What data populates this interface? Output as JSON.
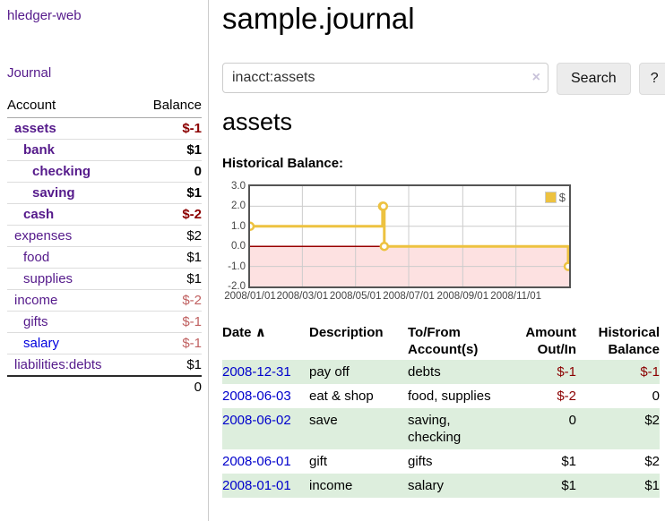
{
  "app": {
    "brand": "hledger-web",
    "nav_journal": "Journal"
  },
  "colors": {
    "link_purple": "#551a8b",
    "link_blue": "#0000cc",
    "negative_strong": "#8b0000",
    "negative_soft": "#c06060",
    "row_green": "#ddeedd",
    "series_yellow": "#edc240",
    "zero_line": "#990000",
    "negative_region": "#fde1e1",
    "grid": "#cccccc"
  },
  "sidebar": {
    "header": {
      "account": "Account",
      "balance": "Balance"
    },
    "accounts": [
      {
        "name": "assets",
        "balance": "$-1",
        "level": 0,
        "bold": true
      },
      {
        "name": "bank",
        "balance": "$1",
        "level": 1,
        "bold": true
      },
      {
        "name": "checking",
        "balance": "0",
        "level": 2,
        "bold": true
      },
      {
        "name": "saving",
        "balance": "$1",
        "level": 2,
        "bold": true
      },
      {
        "name": "cash",
        "balance": "$-2",
        "level": 1,
        "bold": true
      },
      {
        "name": "expenses",
        "balance": "$2",
        "level": 0,
        "bold": false
      },
      {
        "name": "food",
        "balance": "$1",
        "level": 1,
        "bold": false
      },
      {
        "name": "supplies",
        "balance": "$1",
        "level": 1,
        "bold": false
      },
      {
        "name": "income",
        "balance": "$-2",
        "level": 0,
        "bold": false
      },
      {
        "name": "gifts",
        "balance": "$-1",
        "level": 1,
        "bold": false
      },
      {
        "name": "salary",
        "balance": "$-1",
        "level": 1,
        "bold": false,
        "link_color": "blue"
      },
      {
        "name": "liabilities:debts",
        "balance": "$1",
        "level": 0,
        "bold": false
      }
    ],
    "total": "0"
  },
  "main": {
    "title": "sample.journal",
    "search": {
      "value": "inacct:assets",
      "clear": "×",
      "button": "Search",
      "help": "?"
    },
    "account_heading": "assets",
    "chart_label": "Historical Balance:"
  },
  "chart_data": {
    "type": "line",
    "title": "Historical Balance",
    "step": true,
    "legend": "$",
    "legend_position": "top-right",
    "grid": true,
    "ylim": [
      -2,
      3
    ],
    "y_ticks": [
      "3.0",
      "2.0",
      "1.0",
      "0.0",
      "-1.0",
      "-2.0"
    ],
    "x_range": [
      "2008-01-01",
      "2009-01-01"
    ],
    "x_ticks": [
      "2008/01/01",
      "2008/03/01",
      "2008/05/01",
      "2008/07/01",
      "2008/09/01",
      "2008/11/01"
    ],
    "series": [
      {
        "name": "$",
        "color": "#edc240",
        "points": [
          [
            "2008-01-01",
            1
          ],
          [
            "2008-06-01",
            2
          ],
          [
            "2008-06-02",
            2
          ],
          [
            "2008-06-03",
            0
          ],
          [
            "2008-12-31",
            -1
          ]
        ]
      }
    ]
  },
  "transactions": {
    "sort_icon": "∧",
    "headers": [
      {
        "line1": "Date",
        "line2": ""
      },
      {
        "line1": "Description",
        "line2": ""
      },
      {
        "line1": "To/From",
        "line2": "Account(s)"
      },
      {
        "line1": "Amount",
        "line2": "Out/In"
      },
      {
        "line1": "Historical",
        "line2": "Balance"
      }
    ],
    "rows": [
      {
        "date": "2008-12-31",
        "description": "pay off",
        "accounts": "debts",
        "amount": "$-1",
        "balance": "$-1"
      },
      {
        "date": "2008-06-03",
        "description": "eat & shop",
        "accounts": "food, supplies",
        "amount": "$-2",
        "balance": "0"
      },
      {
        "date": "2008-06-02",
        "description": "save",
        "accounts": "saving, checking",
        "amount": "0",
        "balance": "$2"
      },
      {
        "date": "2008-06-01",
        "description": "gift",
        "accounts": "gifts",
        "amount": "$1",
        "balance": "$2"
      },
      {
        "date": "2008-01-01",
        "description": "income",
        "accounts": "salary",
        "amount": "$1",
        "balance": "$1"
      }
    ]
  }
}
